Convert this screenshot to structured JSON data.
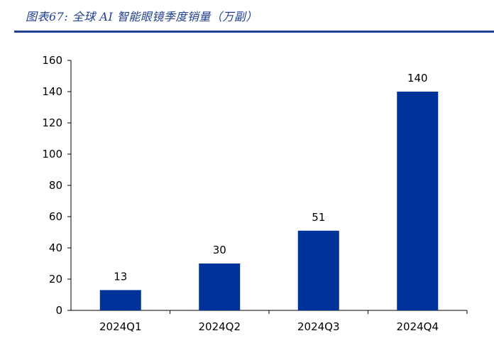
{
  "figure": {
    "title": "图表67:  全球 AI 智能眼镜季度销量（万副）"
  },
  "colors": {
    "bar": "#003399",
    "title": "#1f3f8f",
    "axis": "#000000"
  },
  "chart_data": {
    "type": "bar",
    "title": "",
    "xlabel": "",
    "ylabel": "",
    "categories": [
      "2024Q1",
      "2024Q2",
      "2024Q3",
      "2024Q4"
    ],
    "values": [
      13,
      30,
      51,
      140
    ],
    "data_labels": [
      "13",
      "30",
      "51",
      "140"
    ],
    "ylim": [
      0,
      160
    ],
    "yticks": [
      0,
      20,
      40,
      60,
      80,
      100,
      120,
      140,
      160
    ],
    "grid": false,
    "legend": "none"
  }
}
